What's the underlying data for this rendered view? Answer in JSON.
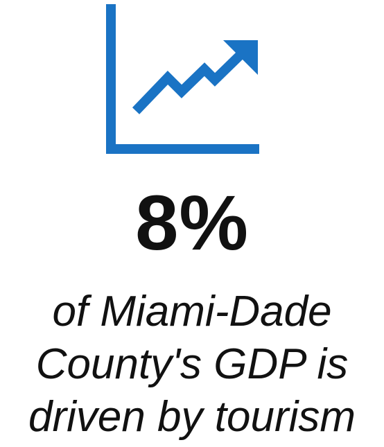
{
  "icon": {
    "name": "trending-up-chart-icon",
    "color": "#1a73c4"
  },
  "stat": {
    "value": "8%",
    "caption_lines": [
      "of Miami-Dade",
      "County's GDP is",
      "driven by tourism"
    ]
  }
}
